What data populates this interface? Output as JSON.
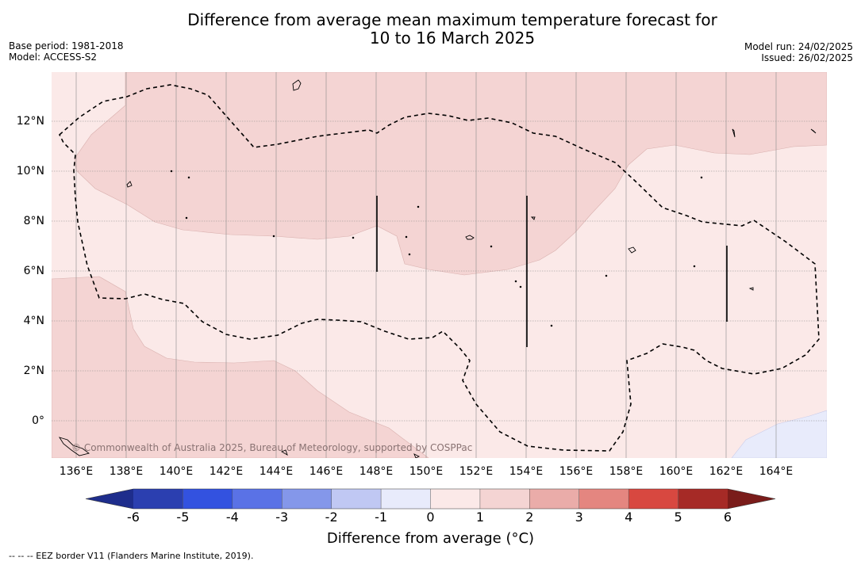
{
  "title_line1": "Difference from average mean maximum temperature forecast for",
  "title_line2": "10 to 16 March 2025",
  "base_period": "Base period: 1981-2018",
  "model": "Model: ACCESS-S2",
  "model_run": "Model run: 24/02/2025",
  "issued": "Issued: 26/02/2025",
  "copyright": "© Commonwealth of Australia 2025, Bureau of Meteorology, supported by COSPPac",
  "footnote": "--  --  -- EEZ border V11 (Flanders Marine Institute, 2019).",
  "colorbar_label": "Difference from average (°C)",
  "lat_labels": [
    "12°N",
    "10°N",
    "8°N",
    "6°N",
    "4°N",
    "2°N",
    "0°"
  ],
  "lon_labels": [
    "136°E",
    "138°E",
    "140°E",
    "142°E",
    "144°E",
    "146°E",
    "148°E",
    "150°E",
    "152°E",
    "154°E",
    "156°E",
    "158°E",
    "160°E",
    "162°E",
    "164°E"
  ],
  "colorbar": {
    "ticks": [
      "-6",
      "-5",
      "-4",
      "-3",
      "-2",
      "-1",
      "0",
      "1",
      "2",
      "3",
      "4",
      "5",
      "6"
    ],
    "colors": [
      "#1e2d8c",
      "#2b3fb0",
      "#3352e0",
      "#5a72e6",
      "#8497ea",
      "#c0c8f3",
      "#e8ebfb",
      "#fbe9e8",
      "#f4d4d3",
      "#eaaca9",
      "#e48680",
      "#d84840",
      "#a62a26",
      "#7a1c1a"
    ]
  },
  "legend": {
    "range_min": -6,
    "range_max": 6,
    "step": 1
  },
  "map_fill": {
    "light": "#fbe9e8",
    "medium": "#f4d4d3",
    "blue": "#e8ebfb"
  }
}
